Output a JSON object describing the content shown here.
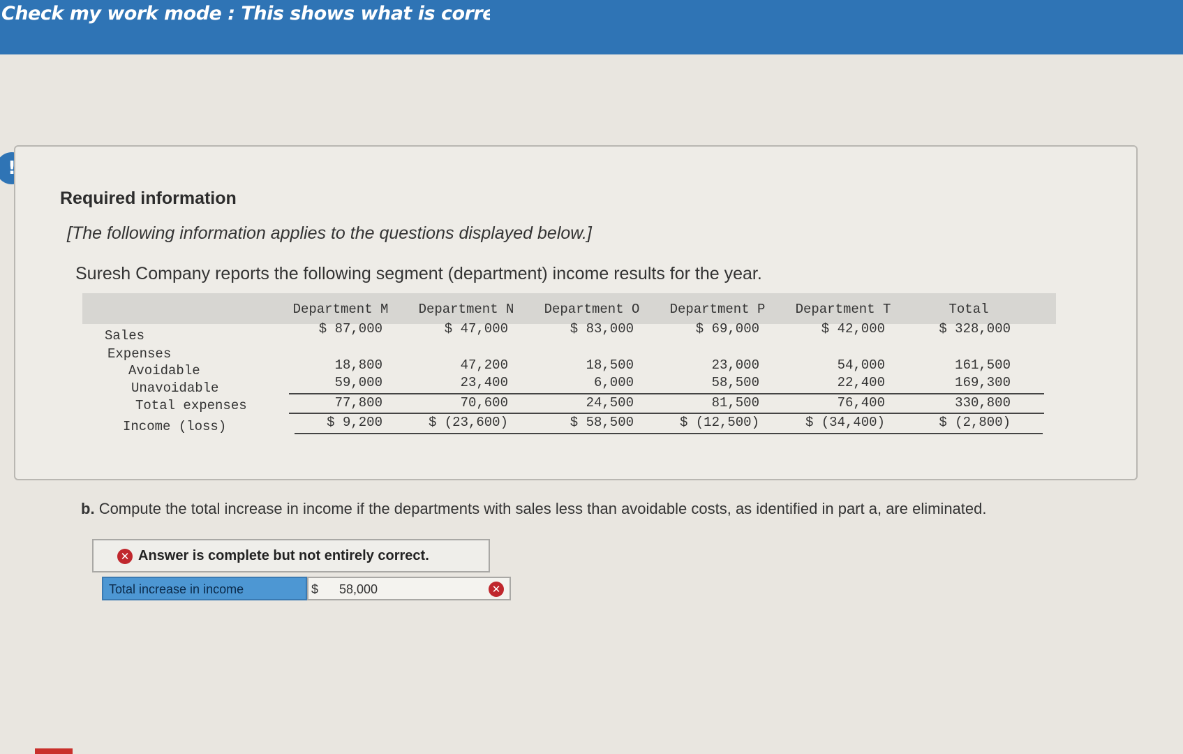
{
  "banner": {
    "text": "Check my work mode : This shows what is correct or incorrect for the work you have completed so far"
  },
  "alert_icon": "!",
  "info": {
    "title": "Required information",
    "applies_text": "[The following information applies to the questions displayed below.]",
    "intro": "Suresh Company reports the following segment (department) income results for the year."
  },
  "table": {
    "columns": [
      "Department M",
      "Department N",
      "Department O",
      "Department P",
      "Department T",
      "Total"
    ],
    "row_labels": {
      "sales": "Sales",
      "expenses": "Expenses",
      "avoidable": "Avoidable",
      "unavoidable": "Unavoidable",
      "total_expenses": "Total expenses",
      "income": "Income (loss)"
    },
    "sales": [
      "$ 87,000",
      "$ 47,000",
      "$ 83,000",
      "$ 69,000",
      "$ 42,000",
      "$ 328,000"
    ],
    "avoidable": [
      "18,800",
      "47,200",
      "18,500",
      "23,000",
      "54,000",
      "161,500"
    ],
    "unavoidable": [
      "59,000",
      "23,400",
      "6,000",
      "58,500",
      "22,400",
      "169,300"
    ],
    "total_expenses": [
      "77,800",
      "70,600",
      "24,500",
      "81,500",
      "76,400",
      "330,800"
    ],
    "income": [
      "$ 9,200",
      "$ (23,600)",
      "$ 58,500",
      "$ (12,500)",
      "$ (34,400)",
      "$ (2,800)"
    ]
  },
  "question": {
    "prefix": "b.",
    "text": "Compute the total increase in income if the departments with sales less than avoidable costs, as identified in part a, are eliminated."
  },
  "status": {
    "icon": "close-icon",
    "text": "Answer is complete but not entirely correct."
  },
  "answer": {
    "label": "Total increase in income",
    "currency": "$",
    "value": "58,000",
    "result_icon": "close-icon"
  },
  "colors": {
    "banner": "#2f74b5",
    "incorrect": "#c0272d",
    "answer_label_bg": "#4d97d3"
  }
}
